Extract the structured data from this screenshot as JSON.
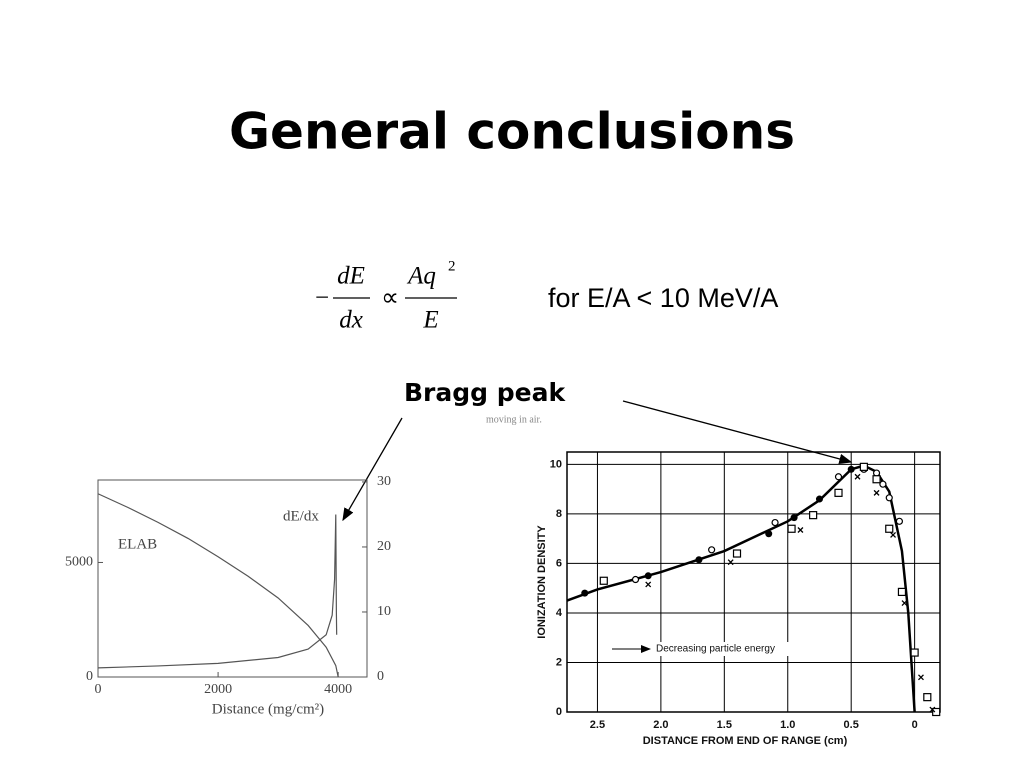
{
  "title": "General conclusions",
  "formula": {
    "sign": "−",
    "lhs_num": "dE",
    "lhs_den": "dx",
    "relation": "∝",
    "rhs_num": "Aq",
    "rhs_exp": "2",
    "rhs_den": "E"
  },
  "condition": "for E/A < 10 MeV/A",
  "callout": "Bragg peak",
  "fragment": "moving in air.",
  "chart_data": [
    {
      "type": "line",
      "xlabel": "Distance (mg/cm²)",
      "xlim": [
        0,
        4480
      ],
      "xticks": [
        0,
        2000,
        4000
      ],
      "ylim": [
        0,
        8600
      ],
      "yticks": [
        0,
        5000
      ],
      "y2lim": [
        0,
        30.3
      ],
      "y2ticks": [
        0,
        10,
        20,
        30
      ],
      "grid": false,
      "series": [
        {
          "name": "ELAB",
          "color": "#555555",
          "marker": "line",
          "x": [
            0,
            500,
            1000,
            1500,
            2000,
            2500,
            3000,
            3500,
            3800,
            3960,
            4000
          ],
          "values": [
            8000,
            7400,
            6750,
            6050,
            5250,
            4400,
            3450,
            2250,
            1300,
            500,
            0
          ]
        },
        {
          "name": "dE/dx",
          "color": "#555555",
          "marker": "line",
          "axis": "y2",
          "x": [
            0,
            1000,
            2000,
            3000,
            3500,
            3800,
            3900,
            3940,
            3960,
            3970,
            3975
          ],
          "values": [
            1.4,
            1.7,
            2.1,
            3,
            4.3,
            6.5,
            9.5,
            15,
            25,
            10,
            6.5
          ]
        }
      ]
    },
    {
      "type": "scatter",
      "xlabel": "DISTANCE FROM END OF RANGE (cm)",
      "ylabel": "IONIZATION DENSITY",
      "annotation": "Decreasing particle energy",
      "xlim": [
        2.74,
        -0.2
      ],
      "xticks": [
        2.5,
        {
          "value": 2,
          "label": "2.0"
        },
        1.5,
        {
          "value": 1,
          "label": "1.0"
        },
        0.5,
        0
      ],
      "ylim": [
        0,
        10.5
      ],
      "yticks": [
        0,
        2,
        4,
        6,
        8,
        10
      ],
      "grid": true,
      "series": [
        {
          "color": "#000000",
          "marker": "line",
          "x": [
            2.74,
            2.5,
            2.0,
            1.5,
            1.0,
            0.75,
            0.5,
            0.4,
            0.3,
            0.2,
            0.1,
            0.05,
            0
          ],
          "values": [
            4.5,
            4.95,
            5.65,
            6.5,
            7.7,
            8.55,
            9.8,
            9.95,
            9.7,
            8.9,
            6.5,
            4,
            0
          ]
        },
        {
          "color": "#000000",
          "marker": "dot",
          "x": [
            2.6,
            2.1,
            1.7,
            1.15,
            0.95,
            0.75,
            0.5
          ],
          "values": [
            4.8,
            5.5,
            6.15,
            7.2,
            7.85,
            8.6,
            9.8
          ]
        },
        {
          "color": "#000000",
          "marker": "circle",
          "x": [
            2.2,
            1.6,
            1.1,
            0.6,
            0.4,
            0.3,
            0.25,
            0.2,
            0.12
          ],
          "values": [
            5.35,
            6.55,
            7.65,
            9.5,
            9.8,
            9.65,
            9.2,
            8.65,
            7.7
          ]
        },
        {
          "color": "#000000",
          "marker": "square",
          "x": [
            2.45,
            1.4,
            0.97,
            0.8,
            0.6,
            0.4,
            0.3,
            0.2,
            0.1,
            0,
            -0.1,
            -0.17
          ],
          "values": [
            5.3,
            6.4,
            7.4,
            7.95,
            8.85,
            9.9,
            9.4,
            7.4,
            4.85,
            2.4,
            0.6,
            0
          ]
        },
        {
          "color": "#000000",
          "marker": "x",
          "x": [
            2.1,
            1.45,
            0.9,
            0.45,
            0.3,
            0.17,
            0.08,
            -0.05,
            -0.14
          ],
          "values": [
            5.15,
            6.05,
            7.35,
            9.5,
            8.85,
            7.15,
            4.4,
            1.4,
            0.1
          ]
        }
      ]
    }
  ]
}
